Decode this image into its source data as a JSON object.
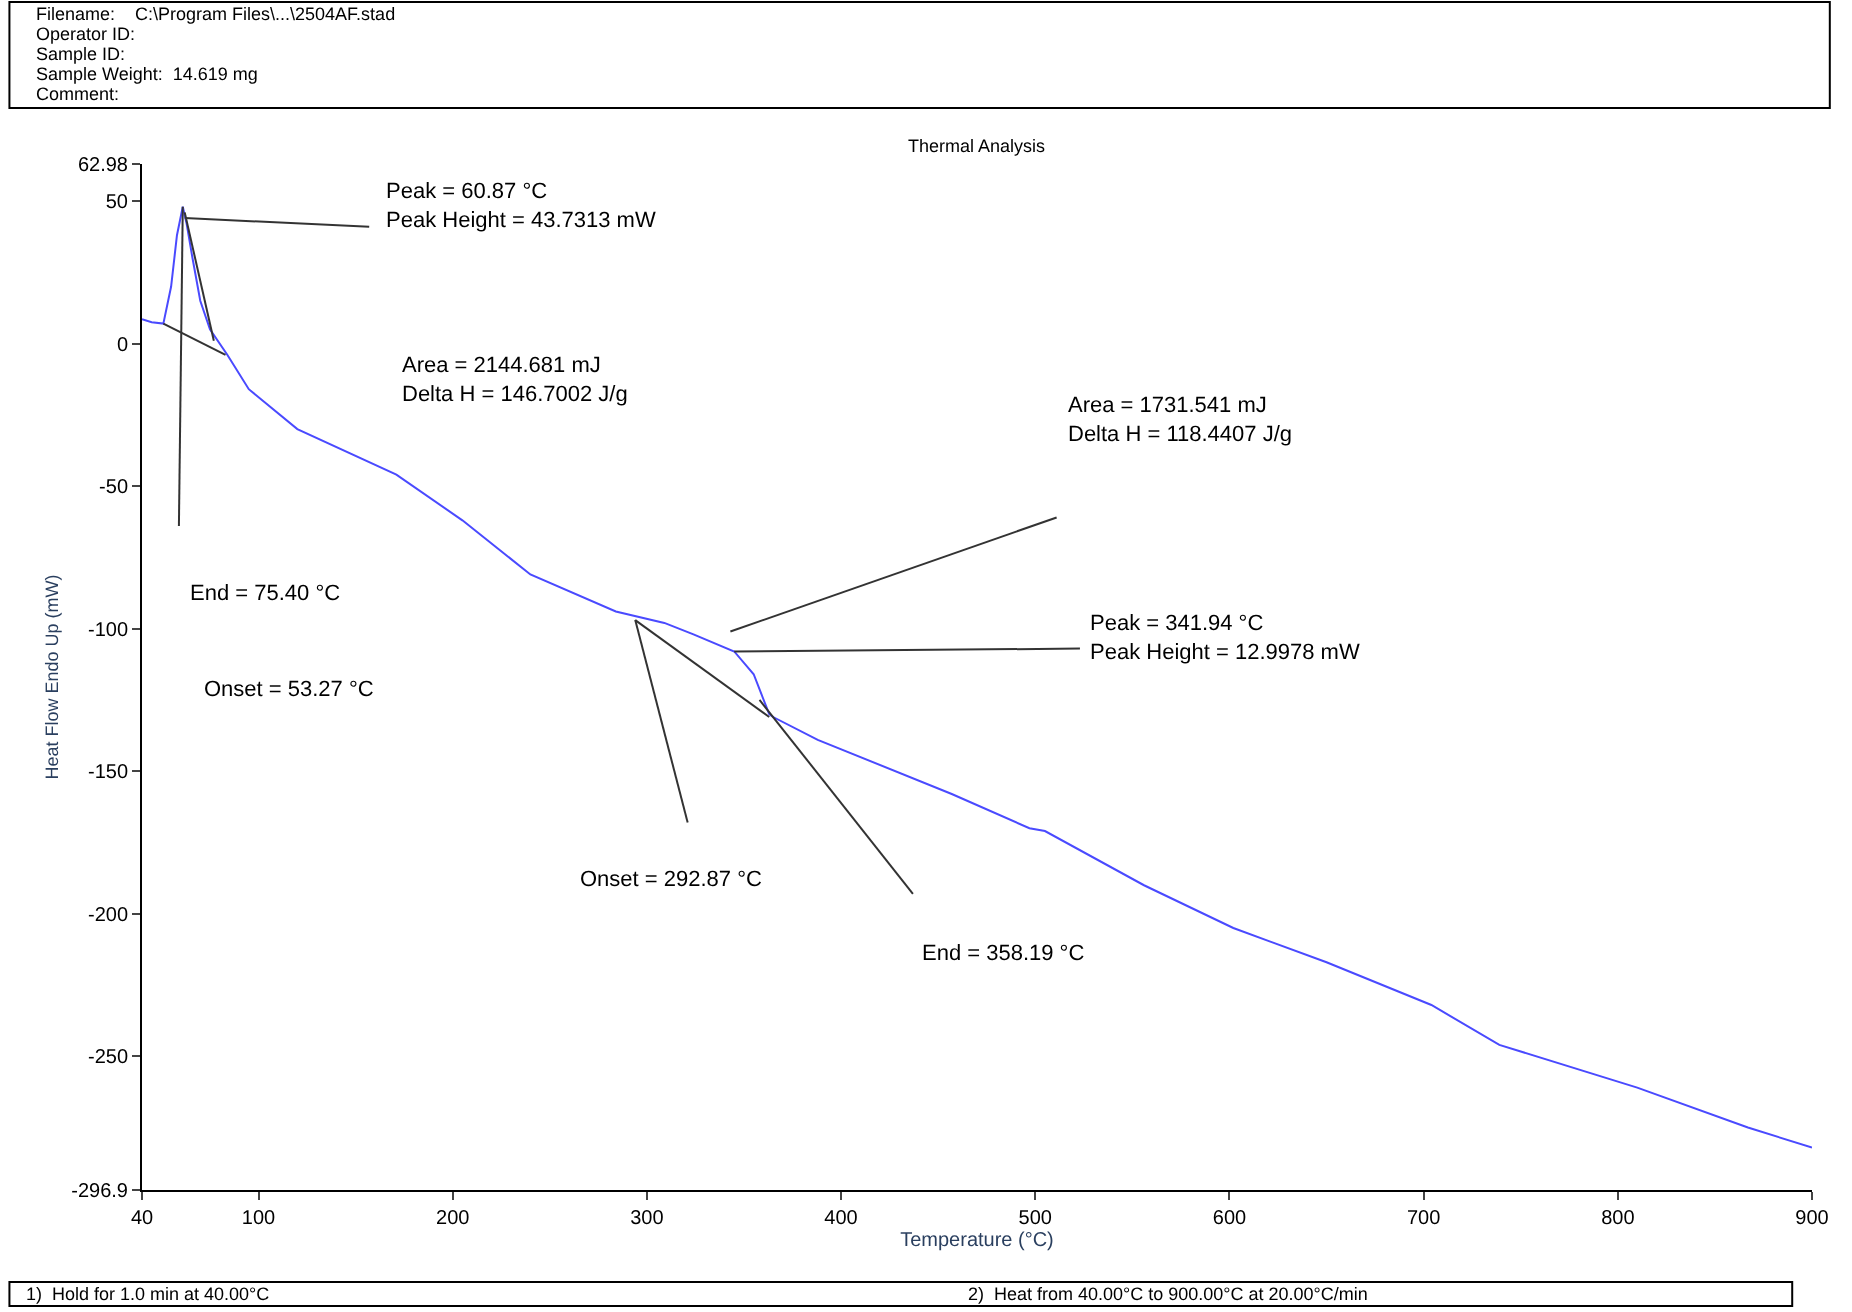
{
  "chart_data": {
    "type": "line",
    "title": "Thermal Analysis",
    "xlabel": "Temperature (°C)",
    "ylabel": "Heat Flow Endo Up (mW)",
    "xlim": [
      40,
      900
    ],
    "xticks": [
      40,
      100,
      200,
      300,
      400,
      500,
      600,
      700,
      800,
      900
    ],
    "ylim": [
      -296.9,
      62.98
    ],
    "yticks": [
      62.98,
      50,
      0,
      -50,
      -100,
      -150,
      -200,
      -250,
      -296.9
    ],
    "marker": "none",
    "line_style": "solid",
    "series": [
      {
        "color": "#4a4aff",
        "x": [
          40,
          45,
          51,
          55,
          58,
          61,
          63,
          66,
          70,
          75,
          84,
          95,
          120,
          171,
          205,
          240,
          284,
          309,
          324,
          345,
          355,
          363,
          365,
          388,
          457,
          497,
          505,
          556,
          602,
          650,
          704,
          739,
          810,
          867,
          900
        ],
        "values": [
          8.5,
          7.5,
          7,
          20,
          38,
          48,
          42,
          30,
          15,
          5,
          -4,
          -16,
          -30,
          -46,
          -62,
          -81,
          -94,
          -98,
          -102,
          -108,
          -116,
          -130,
          -131,
          -139,
          -158,
          -170,
          -171,
          -190,
          -205,
          -217,
          -232,
          -246,
          -261,
          -275,
          -282
        ]
      },
      {
        "color": "#333333",
        "x": [
          59,
          61
        ],
        "values": [
          -64,
          48
        ]
      },
      {
        "color": "#333333",
        "x": [
          62,
          77
        ],
        "values": [
          46,
          1
        ]
      },
      {
        "color": "#333333",
        "x": [
          51,
          83
        ],
        "values": [
          7,
          -4
        ]
      },
      {
        "color": "#333333",
        "x": [
          62,
          157
        ],
        "values": [
          44,
          41
        ]
      },
      {
        "color": "#333333",
        "x": [
          294,
          363
        ],
        "values": [
          -97,
          -131
        ]
      },
      {
        "color": "#333333",
        "x": [
          294,
          321
        ],
        "values": [
          -97,
          -168
        ]
      },
      {
        "color": "#333333",
        "x": [
          358,
          437
        ],
        "values": [
          -125,
          -193
        ]
      },
      {
        "color": "#333333",
        "x": [
          345,
          523
        ],
        "values": [
          -108,
          -107
        ]
      },
      {
        "color": "#333333",
        "x": [
          343,
          511
        ],
        "values": [
          -101,
          -61
        ]
      }
    ],
    "annotations": [
      "Filename:    C:\\Program Files\\...\\2504AF.stad",
      "Operator ID:",
      "Sample ID:",
      "Sample Weight:  14.619 mg",
      "Comment:",
      "1)  Hold for 1.0 min at 40.00°C",
      "2)  Heat from 40.00°C to 900.00°C at 20.00°C/min",
      "Peak = 60.87 °C\nPeak Height = 43.7313 mW",
      "Area = 2144.681 mJ\nDelta H = 146.7002 J/g",
      "End = 75.40 °C",
      "Onset = 53.27 °C",
      "Area = 1731.541 mJ\nDelta H = 118.4407 J/g",
      "Peak = 341.94 °C\nPeak Height = 12.9978 mW",
      "Onset = 292.87 °C",
      "End = 358.19 °C"
    ]
  }
}
